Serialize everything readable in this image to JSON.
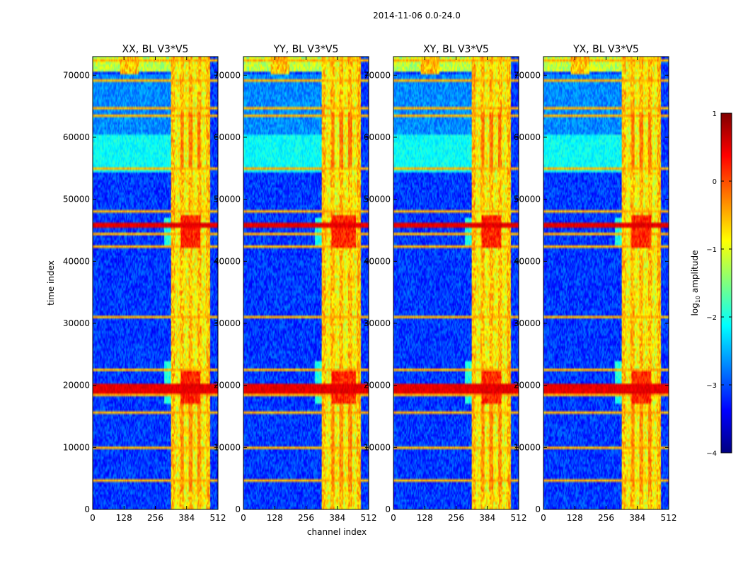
{
  "chart_data": {
    "type": "heatmap",
    "suptitle": "2014-11-06 0.0-24.0",
    "xlabel": "channel index",
    "ylabel": "time index",
    "xlim": [
      0,
      512
    ],
    "ylim": [
      0,
      73000
    ],
    "x_ticks": [
      0,
      128,
      256,
      384,
      512
    ],
    "x_tick_labels": [
      "0",
      "128",
      "256",
      "384",
      "512"
    ],
    "y_ticks": [
      0,
      10000,
      20000,
      30000,
      40000,
      50000,
      60000,
      70000
    ],
    "y_tick_labels": [
      "0",
      "10000",
      "20000",
      "30000",
      "40000",
      "50000",
      "60000",
      "70000"
    ],
    "colormap": "jet",
    "colorbar": {
      "label": "log10 amplitude",
      "label_base": "log",
      "label_sub": "10",
      "label_rest": " amplitude",
      "range": [
        -4,
        1
      ],
      "ticks": [
        1,
        0,
        -1,
        -2,
        -3,
        -4
      ],
      "tick_labels": [
        "1",
        "0",
        "−1",
        "−2",
        "−3",
        "−4"
      ]
    },
    "panels": [
      {
        "title": "XX, BL V3*V5",
        "strong_band_min": 360,
        "strong_band_max": 440
      },
      {
        "title": "YY, BL V3*V5",
        "strong_band_min": 360,
        "strong_band_max": 460
      },
      {
        "title": "XY, BL V3*V5",
        "strong_band_min": 360,
        "strong_band_max": 440
      },
      {
        "title": "YX, BL V3*V5",
        "strong_band_min": 360,
        "strong_band_max": 440
      }
    ],
    "rfi_time_rows": [
      4500,
      10000,
      15500,
      18500,
      19200,
      20000,
      22500,
      31000,
      42500,
      44500,
      45800,
      48000,
      54800,
      63500,
      64800,
      69300,
      72500
    ],
    "broadband_burst_rows": [
      19000,
      19800,
      45800
    ],
    "notes": "Dynamic spectra of visibility amplitude per polarization; background ~-3, strong RFI band in channels ~320-480 at ~-1 to 0, horizontal RFI lines across all channels."
  }
}
